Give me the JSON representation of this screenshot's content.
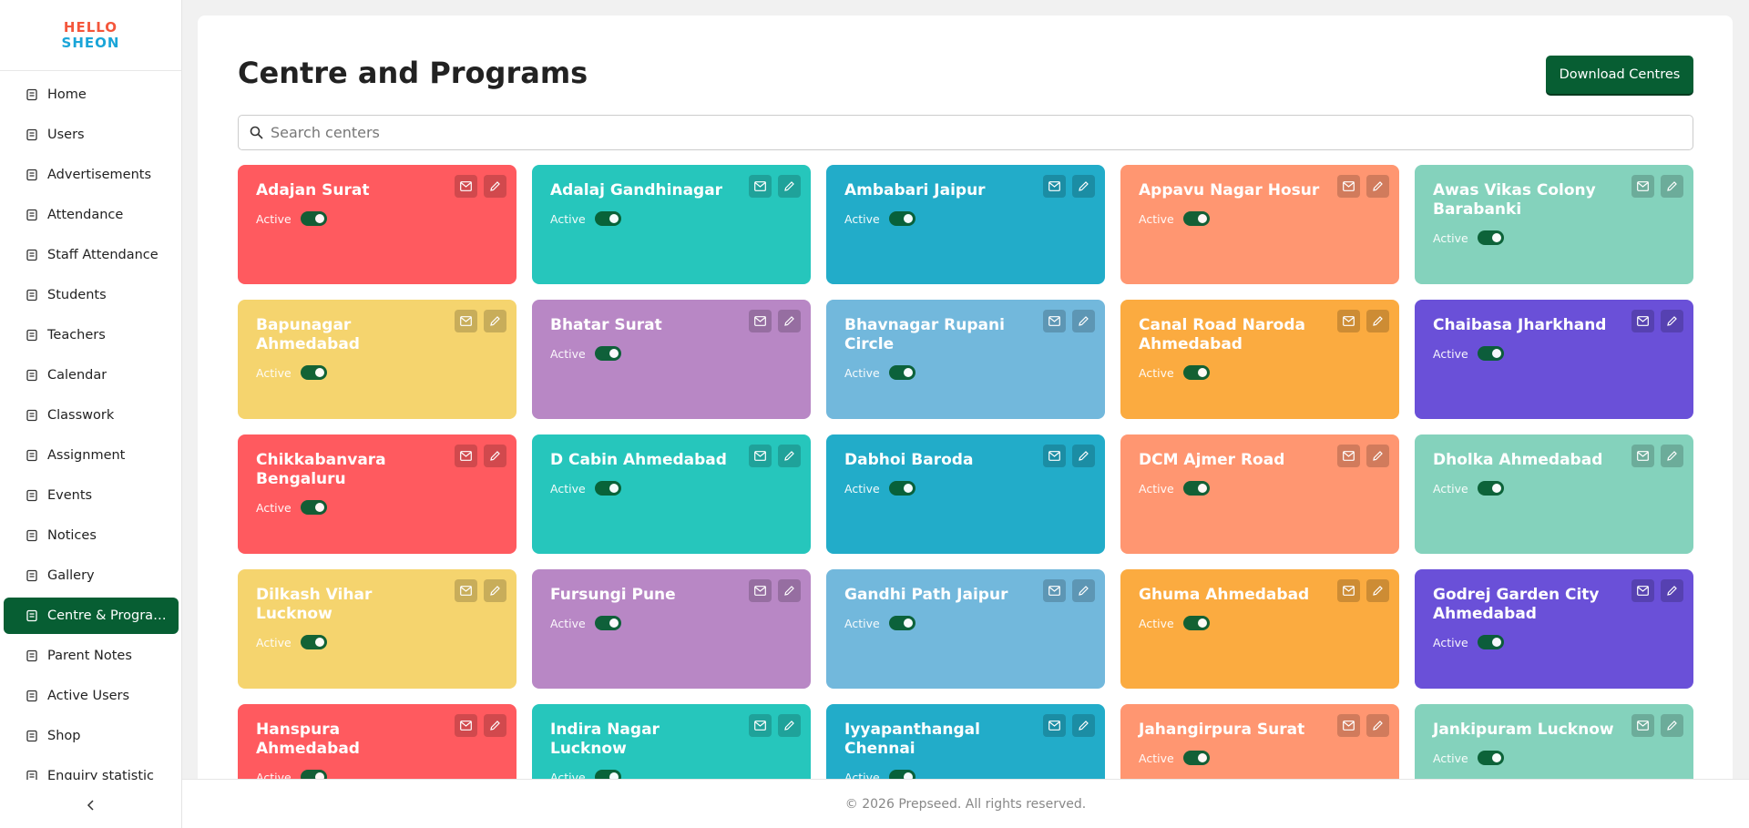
{
  "logo": [
    "HELLO",
    "SHEON"
  ],
  "nav": [
    {
      "label": "Home"
    },
    {
      "label": "Users"
    },
    {
      "label": "Advertisements"
    },
    {
      "label": "Attendance"
    },
    {
      "label": "Staff Attendance"
    },
    {
      "label": "Students"
    },
    {
      "label": "Teachers"
    },
    {
      "label": "Calendar"
    },
    {
      "label": "Classwork"
    },
    {
      "label": "Assignment"
    },
    {
      "label": "Events"
    },
    {
      "label": "Notices"
    },
    {
      "label": "Gallery"
    },
    {
      "label": "Centre & Programs",
      "active": true
    },
    {
      "label": "Parent Notes"
    },
    {
      "label": "Active Users"
    },
    {
      "label": "Shop"
    },
    {
      "label": "Enquiry statistic"
    }
  ],
  "header": {
    "title": "Centre and Programs",
    "button": "Download Centres"
  },
  "search": {
    "placeholder": "Search centers"
  },
  "centres": [
    {
      "name": "Adajan Surat",
      "status": "Active",
      "active": true,
      "color": "#ff5a5f"
    },
    {
      "name": "Adalaj Gandhinagar",
      "status": "Active",
      "active": true,
      "color": "#26c6bc"
    },
    {
      "name": "Ambabari Jaipur",
      "status": "Active",
      "active": true,
      "color": "#22acc9"
    },
    {
      "name": "Appavu Nagar Hosur",
      "status": "Active",
      "active": true,
      "color": "#ff9671"
    },
    {
      "name": "Awas Vikas Colony Barabanki",
      "status": "Active",
      "active": true,
      "color": "#84d2bc"
    },
    {
      "name": "Bapunagar Ahmedabad",
      "status": "Active",
      "active": true,
      "color": "#f5d46e"
    },
    {
      "name": "Bhatar Surat",
      "status": "Active",
      "active": true,
      "color": "#b887c5"
    },
    {
      "name": "Bhavnagar Rupani Circle",
      "status": "Active",
      "active": true,
      "color": "#72b8dc"
    },
    {
      "name": "Canal Road Naroda Ahmedabad",
      "status": "Active",
      "active": true,
      "color": "#fbab40"
    },
    {
      "name": "Chaibasa Jharkhand",
      "status": "Active",
      "active": true,
      "color": "#6a50d8"
    },
    {
      "name": "Chikkabanvara Bengaluru",
      "status": "Active",
      "active": true,
      "color": "#ff5a5f"
    },
    {
      "name": "D Cabin Ahmedabad",
      "status": "Active",
      "active": true,
      "color": "#26c6bc"
    },
    {
      "name": "Dabhoi Baroda",
      "status": "Active",
      "active": true,
      "color": "#22acc9"
    },
    {
      "name": "DCM Ajmer Road",
      "status": "Active",
      "active": true,
      "color": "#ff9671"
    },
    {
      "name": "Dholka Ahmedabad",
      "status": "Active",
      "active": true,
      "color": "#84d2bc"
    },
    {
      "name": "Dilkash Vihar Lucknow",
      "status": "Active",
      "active": true,
      "color": "#f5d46e"
    },
    {
      "name": "Fursungi Pune",
      "status": "Active",
      "active": true,
      "color": "#b887c5"
    },
    {
      "name": "Gandhi Path Jaipur",
      "status": "Active",
      "active": true,
      "color": "#72b8dc"
    },
    {
      "name": "Ghuma Ahmedabad",
      "status": "Active",
      "active": true,
      "color": "#fbab40"
    },
    {
      "name": "Godrej Garden City Ahmedabad",
      "status": "Active",
      "active": true,
      "color": "#6a50d8"
    },
    {
      "name": "Hanspura Ahmedabad",
      "status": "Active",
      "active": true,
      "color": "#ff5a5f"
    },
    {
      "name": "Indira Nagar Lucknow",
      "status": "Active",
      "active": true,
      "color": "#26c6bc"
    },
    {
      "name": "Iyyapanthangal Chennai",
      "status": "Active",
      "active": true,
      "color": "#22acc9"
    },
    {
      "name": "Jahangirpura Surat",
      "status": "Active",
      "active": true,
      "color": "#ff9671"
    },
    {
      "name": "Jankipuram Lucknow",
      "status": "Active",
      "active": true,
      "color": "#84d2bc"
    }
  ],
  "footer": "© 2026 Prepseed. All rights reserved."
}
